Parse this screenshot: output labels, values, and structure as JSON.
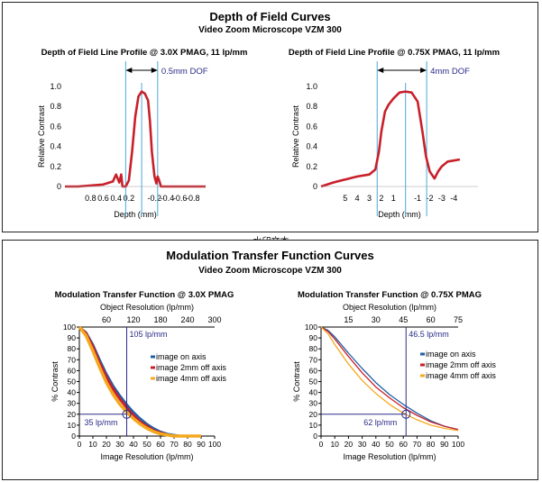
{
  "top_section": {
    "title": "Depth of Field Curves",
    "subtitle": "Video Zoom Microscope VZM 300"
  },
  "bottom_section": {
    "title": "Modulation Transfer Function Curves",
    "subtitle": "Video Zoom Microscope VZM 300"
  },
  "watermark": "水印文本",
  "colors": {
    "red": "#c8202a",
    "blue": "#1f5fa6",
    "orange": "#f5a81f",
    "cyan": "#4ea8d8",
    "navy": "#2a2a88"
  },
  "chart_data": [
    {
      "type": "line",
      "title": "Depth of Field Line Profile @ 3.0X PMAG, 11 lp/mm",
      "xlabel": "Depth (mm)",
      "ylabel": "Relative Contrast",
      "xlim": [
        1.2,
        -1.0
      ],
      "ylim": [
        0,
        1.0
      ],
      "x_ticks": [
        0.8,
        0.6,
        0.4,
        0.2,
        -0.2,
        -0.4,
        -0.6,
        -0.8
      ],
      "x_tick_labels": [
        "0.8",
        "0.6",
        "0.4",
        "0.2",
        "-0.2",
        "-0.4",
        "-0.6",
        "-0.8"
      ],
      "y_ticks": [
        0,
        0.2,
        0.4,
        0.6,
        0.8,
        1.0
      ],
      "y_tick_labels": [
        "0",
        "0.2",
        "0.4",
        "0.6",
        "0.8",
        "1.0"
      ],
      "annotation": "0.5mm DOF",
      "dof_lines": [
        0.25,
        -0.25
      ],
      "center_line": 0,
      "series": [
        {
          "color": "#c8202a",
          "x": [
            1.2,
            1.0,
            0.8,
            0.6,
            0.45,
            0.4,
            0.35,
            0.32,
            0.3,
            0.25,
            0.2,
            0.15,
            0.1,
            0.05,
            0.0,
            -0.05,
            -0.1,
            -0.13,
            -0.16,
            -0.2,
            -0.23,
            -0.25,
            -0.28,
            -0.3,
            -0.4,
            -0.6,
            -0.8,
            -1.0
          ],
          "y": [
            0.0,
            0.0,
            0.01,
            0.02,
            0.05,
            0.12,
            0.04,
            0.12,
            0.0,
            0.0,
            0.06,
            0.35,
            0.7,
            0.9,
            0.95,
            0.93,
            0.86,
            0.65,
            0.35,
            0.1,
            0.03,
            0.1,
            0.05,
            0.0,
            0.0,
            0.0,
            0.0,
            0.0
          ]
        }
      ]
    },
    {
      "type": "line",
      "title": "Depth of Field Line Profile @ 0.75X PMAG, 11 lp/mm",
      "xlabel": "Depth (mm)",
      "ylabel": "Relative Contrast",
      "xlim": [
        7.0,
        -6.0
      ],
      "ylim": [
        0,
        1.0
      ],
      "x_ticks": [
        5,
        4,
        3,
        2,
        1,
        -1,
        -2,
        -3,
        -4
      ],
      "x_tick_labels": [
        "5",
        "4",
        "3",
        "2",
        "1",
        "-1",
        "-2",
        "-3",
        "-4"
      ],
      "y_ticks": [
        0,
        0.2,
        0.4,
        0.6,
        0.8,
        1.0
      ],
      "y_tick_labels": [
        "0",
        "0.2",
        "0.4",
        "0.6",
        "0.8",
        "1.0"
      ],
      "annotation": "4mm DOF",
      "dof_lines": [
        2.35,
        -1.75
      ],
      "center_line": 0,
      "series": [
        {
          "color": "#c8202a",
          "x": [
            7.0,
            6.0,
            5.0,
            4.0,
            3.0,
            2.5,
            2.2,
            2.0,
            1.7,
            1.4,
            1.0,
            0.5,
            0.0,
            -0.5,
            -1.0,
            -1.4,
            -1.7,
            -2.0,
            -2.4,
            -2.7,
            -3.0,
            -3.5,
            -4.5
          ],
          "y": [
            0.0,
            0.04,
            0.07,
            0.1,
            0.12,
            0.17,
            0.35,
            0.55,
            0.75,
            0.82,
            0.88,
            0.94,
            0.95,
            0.94,
            0.85,
            0.55,
            0.3,
            0.15,
            0.08,
            0.15,
            0.2,
            0.25,
            0.27
          ]
        }
      ]
    },
    {
      "type": "line",
      "title": "Modulation Transfer Function @ 3.0X PMAG",
      "xlabel": "Image Resolution (lp/mm)",
      "ylabel": "% Contrast",
      "x2label": "Object Resolution (lp/mm)",
      "xlim": [
        0,
        100
      ],
      "ylim": [
        0,
        100
      ],
      "x_ticks": [
        0,
        10,
        20,
        30,
        40,
        50,
        60,
        70,
        80,
        90,
        100
      ],
      "x_tick_labels": [
        "0",
        "10",
        "20",
        "30",
        "40",
        "50",
        "60",
        "70",
        "80",
        "90",
        "100"
      ],
      "y_ticks": [
        0,
        10,
        20,
        30,
        40,
        50,
        60,
        70,
        80,
        90,
        100
      ],
      "y_tick_labels": [
        "0",
        "10",
        "20",
        "30",
        "40",
        "50",
        "60",
        "70",
        "80",
        "90",
        "100"
      ],
      "x2_ticks": [
        20,
        40,
        60,
        80,
        100
      ],
      "x2_tick_labels": [
        "60",
        "120",
        "180",
        "240",
        "300"
      ],
      "marker_x": 35,
      "marker_y": 20,
      "annotation_top": "105 lp/mm",
      "annotation_bottom": "35 lp/mm",
      "legend": [
        "image on axis",
        "image 2mm off axis",
        "image 4mm off axis"
      ],
      "series": [
        {
          "color": "#1f5fa6",
          "width": 2.5,
          "x": [
            0,
            5,
            10,
            15,
            20,
            25,
            30,
            35,
            40,
            45,
            50,
            55,
            60,
            65,
            70,
            75,
            80,
            90
          ],
          "y": [
            100,
            95,
            84,
            70,
            57,
            46,
            37,
            29,
            22,
            16,
            11,
            7,
            4,
            2,
            1,
            0,
            0,
            0
          ]
        },
        {
          "color": "#c8202a",
          "width": 3.0,
          "x": [
            0,
            5,
            10,
            15,
            20,
            25,
            30,
            35,
            40,
            45,
            50,
            55,
            60,
            65,
            70,
            75,
            80,
            90
          ],
          "y": [
            100,
            94,
            82,
            67,
            54,
            43,
            34,
            26,
            19,
            13,
            9,
            5,
            3,
            1,
            0,
            0,
            0,
            0
          ]
        },
        {
          "color": "#f5a81f",
          "width": 3.5,
          "x": [
            0,
            5,
            10,
            15,
            20,
            25,
            30,
            35,
            40,
            45,
            50,
            55,
            60,
            65,
            70,
            75,
            80,
            90
          ],
          "y": [
            100,
            92,
            78,
            63,
            49,
            38,
            29,
            22,
            16,
            11,
            7,
            4,
            2,
            1,
            0,
            0,
            0,
            0
          ]
        }
      ]
    },
    {
      "type": "line",
      "title": "Modulation Transfer Function @ 0.75X PMAG",
      "xlabel": "Image Resolution (lp/mm)",
      "ylabel": "% Contrast",
      "x2label": "Object Resolution (lp/mm)",
      "xlim": [
        0,
        100
      ],
      "ylim": [
        0,
        100
      ],
      "x_ticks": [
        0,
        10,
        20,
        30,
        40,
        50,
        60,
        70,
        80,
        90,
        100
      ],
      "x_tick_labels": [
        "0",
        "10",
        "20",
        "30",
        "40",
        "50",
        "60",
        "70",
        "80",
        "90",
        "100"
      ],
      "y_ticks": [
        0,
        10,
        20,
        30,
        40,
        50,
        60,
        70,
        80,
        90,
        100
      ],
      "y_tick_labels": [
        "0",
        "10",
        "20",
        "30",
        "40",
        "50",
        "60",
        "70",
        "80",
        "90",
        "100"
      ],
      "x2_ticks": [
        20,
        40,
        60,
        80,
        100
      ],
      "x2_tick_labels": [
        "15",
        "30",
        "45",
        "60",
        "75"
      ],
      "marker_x": 62,
      "marker_y": 20,
      "annotation_top": "46.5 lp/mm",
      "annotation_bottom": "62 lp/mm",
      "legend": [
        "image on axis",
        "image 2mm off axis",
        "image 4mm off axis"
      ],
      "series": [
        {
          "color": "#1f5fa6",
          "width": 1.3,
          "x": [
            0,
            5,
            10,
            20,
            30,
            40,
            50,
            60,
            70,
            80,
            90,
            100
          ],
          "y": [
            100,
            97,
            91,
            76,
            62,
            49,
            38,
            29,
            21,
            14,
            9,
            6
          ]
        },
        {
          "color": "#c8202a",
          "width": 1.3,
          "x": [
            0,
            5,
            10,
            20,
            30,
            40,
            50,
            60,
            70,
            80,
            90,
            100
          ],
          "y": [
            100,
            96,
            89,
            73,
            58,
            45,
            35,
            26,
            19,
            13,
            9,
            6
          ]
        },
        {
          "color": "#f5a81f",
          "width": 1.3,
          "x": [
            0,
            5,
            10,
            20,
            30,
            40,
            50,
            60,
            70,
            80,
            90,
            100
          ],
          "y": [
            100,
            94,
            84,
            66,
            51,
            39,
            29,
            21,
            15,
            10,
            7,
            5
          ]
        }
      ]
    }
  ]
}
